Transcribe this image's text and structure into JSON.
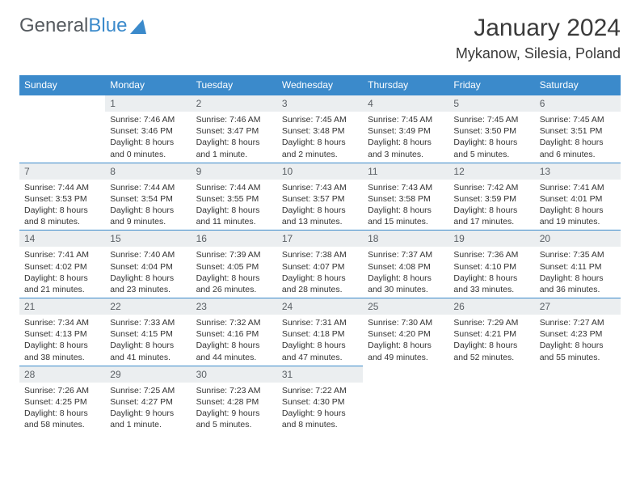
{
  "brand": {
    "part1": "General",
    "part2": "Blue",
    "logo_color": "#3b8acb"
  },
  "title": "January 2024",
  "location": "Mykanow, Silesia, Poland",
  "colors": {
    "header_bg": "#3b8acb",
    "header_text": "#ffffff",
    "daynum_bg": "#ebeef0",
    "daynum_text": "#5a5f64",
    "border": "#3b8acb",
    "body_text": "#333333"
  },
  "weekdays": [
    "Sunday",
    "Monday",
    "Tuesday",
    "Wednesday",
    "Thursday",
    "Friday",
    "Saturday"
  ],
  "weeks": [
    [
      null,
      {
        "n": "1",
        "sunrise": "Sunrise: 7:46 AM",
        "sunset": "Sunset: 3:46 PM",
        "daylight1": "Daylight: 8 hours",
        "daylight2": "and 0 minutes."
      },
      {
        "n": "2",
        "sunrise": "Sunrise: 7:46 AM",
        "sunset": "Sunset: 3:47 PM",
        "daylight1": "Daylight: 8 hours",
        "daylight2": "and 1 minute."
      },
      {
        "n": "3",
        "sunrise": "Sunrise: 7:45 AM",
        "sunset": "Sunset: 3:48 PM",
        "daylight1": "Daylight: 8 hours",
        "daylight2": "and 2 minutes."
      },
      {
        "n": "4",
        "sunrise": "Sunrise: 7:45 AM",
        "sunset": "Sunset: 3:49 PM",
        "daylight1": "Daylight: 8 hours",
        "daylight2": "and 3 minutes."
      },
      {
        "n": "5",
        "sunrise": "Sunrise: 7:45 AM",
        "sunset": "Sunset: 3:50 PM",
        "daylight1": "Daylight: 8 hours",
        "daylight2": "and 5 minutes."
      },
      {
        "n": "6",
        "sunrise": "Sunrise: 7:45 AM",
        "sunset": "Sunset: 3:51 PM",
        "daylight1": "Daylight: 8 hours",
        "daylight2": "and 6 minutes."
      }
    ],
    [
      {
        "n": "7",
        "sunrise": "Sunrise: 7:44 AM",
        "sunset": "Sunset: 3:53 PM",
        "daylight1": "Daylight: 8 hours",
        "daylight2": "and 8 minutes."
      },
      {
        "n": "8",
        "sunrise": "Sunrise: 7:44 AM",
        "sunset": "Sunset: 3:54 PM",
        "daylight1": "Daylight: 8 hours",
        "daylight2": "and 9 minutes."
      },
      {
        "n": "9",
        "sunrise": "Sunrise: 7:44 AM",
        "sunset": "Sunset: 3:55 PM",
        "daylight1": "Daylight: 8 hours",
        "daylight2": "and 11 minutes."
      },
      {
        "n": "10",
        "sunrise": "Sunrise: 7:43 AM",
        "sunset": "Sunset: 3:57 PM",
        "daylight1": "Daylight: 8 hours",
        "daylight2": "and 13 minutes."
      },
      {
        "n": "11",
        "sunrise": "Sunrise: 7:43 AM",
        "sunset": "Sunset: 3:58 PM",
        "daylight1": "Daylight: 8 hours",
        "daylight2": "and 15 minutes."
      },
      {
        "n": "12",
        "sunrise": "Sunrise: 7:42 AM",
        "sunset": "Sunset: 3:59 PM",
        "daylight1": "Daylight: 8 hours",
        "daylight2": "and 17 minutes."
      },
      {
        "n": "13",
        "sunrise": "Sunrise: 7:41 AM",
        "sunset": "Sunset: 4:01 PM",
        "daylight1": "Daylight: 8 hours",
        "daylight2": "and 19 minutes."
      }
    ],
    [
      {
        "n": "14",
        "sunrise": "Sunrise: 7:41 AM",
        "sunset": "Sunset: 4:02 PM",
        "daylight1": "Daylight: 8 hours",
        "daylight2": "and 21 minutes."
      },
      {
        "n": "15",
        "sunrise": "Sunrise: 7:40 AM",
        "sunset": "Sunset: 4:04 PM",
        "daylight1": "Daylight: 8 hours",
        "daylight2": "and 23 minutes."
      },
      {
        "n": "16",
        "sunrise": "Sunrise: 7:39 AM",
        "sunset": "Sunset: 4:05 PM",
        "daylight1": "Daylight: 8 hours",
        "daylight2": "and 26 minutes."
      },
      {
        "n": "17",
        "sunrise": "Sunrise: 7:38 AM",
        "sunset": "Sunset: 4:07 PM",
        "daylight1": "Daylight: 8 hours",
        "daylight2": "and 28 minutes."
      },
      {
        "n": "18",
        "sunrise": "Sunrise: 7:37 AM",
        "sunset": "Sunset: 4:08 PM",
        "daylight1": "Daylight: 8 hours",
        "daylight2": "and 30 minutes."
      },
      {
        "n": "19",
        "sunrise": "Sunrise: 7:36 AM",
        "sunset": "Sunset: 4:10 PM",
        "daylight1": "Daylight: 8 hours",
        "daylight2": "and 33 minutes."
      },
      {
        "n": "20",
        "sunrise": "Sunrise: 7:35 AM",
        "sunset": "Sunset: 4:11 PM",
        "daylight1": "Daylight: 8 hours",
        "daylight2": "and 36 minutes."
      }
    ],
    [
      {
        "n": "21",
        "sunrise": "Sunrise: 7:34 AM",
        "sunset": "Sunset: 4:13 PM",
        "daylight1": "Daylight: 8 hours",
        "daylight2": "and 38 minutes."
      },
      {
        "n": "22",
        "sunrise": "Sunrise: 7:33 AM",
        "sunset": "Sunset: 4:15 PM",
        "daylight1": "Daylight: 8 hours",
        "daylight2": "and 41 minutes."
      },
      {
        "n": "23",
        "sunrise": "Sunrise: 7:32 AM",
        "sunset": "Sunset: 4:16 PM",
        "daylight1": "Daylight: 8 hours",
        "daylight2": "and 44 minutes."
      },
      {
        "n": "24",
        "sunrise": "Sunrise: 7:31 AM",
        "sunset": "Sunset: 4:18 PM",
        "daylight1": "Daylight: 8 hours",
        "daylight2": "and 47 minutes."
      },
      {
        "n": "25",
        "sunrise": "Sunrise: 7:30 AM",
        "sunset": "Sunset: 4:20 PM",
        "daylight1": "Daylight: 8 hours",
        "daylight2": "and 49 minutes."
      },
      {
        "n": "26",
        "sunrise": "Sunrise: 7:29 AM",
        "sunset": "Sunset: 4:21 PM",
        "daylight1": "Daylight: 8 hours",
        "daylight2": "and 52 minutes."
      },
      {
        "n": "27",
        "sunrise": "Sunrise: 7:27 AM",
        "sunset": "Sunset: 4:23 PM",
        "daylight1": "Daylight: 8 hours",
        "daylight2": "and 55 minutes."
      }
    ],
    [
      {
        "n": "28",
        "sunrise": "Sunrise: 7:26 AM",
        "sunset": "Sunset: 4:25 PM",
        "daylight1": "Daylight: 8 hours",
        "daylight2": "and 58 minutes."
      },
      {
        "n": "29",
        "sunrise": "Sunrise: 7:25 AM",
        "sunset": "Sunset: 4:27 PM",
        "daylight1": "Daylight: 9 hours",
        "daylight2": "and 1 minute."
      },
      {
        "n": "30",
        "sunrise": "Sunrise: 7:23 AM",
        "sunset": "Sunset: 4:28 PM",
        "daylight1": "Daylight: 9 hours",
        "daylight2": "and 5 minutes."
      },
      {
        "n": "31",
        "sunrise": "Sunrise: 7:22 AM",
        "sunset": "Sunset: 4:30 PM",
        "daylight1": "Daylight: 9 hours",
        "daylight2": "and 8 minutes."
      },
      null,
      null,
      null
    ]
  ]
}
